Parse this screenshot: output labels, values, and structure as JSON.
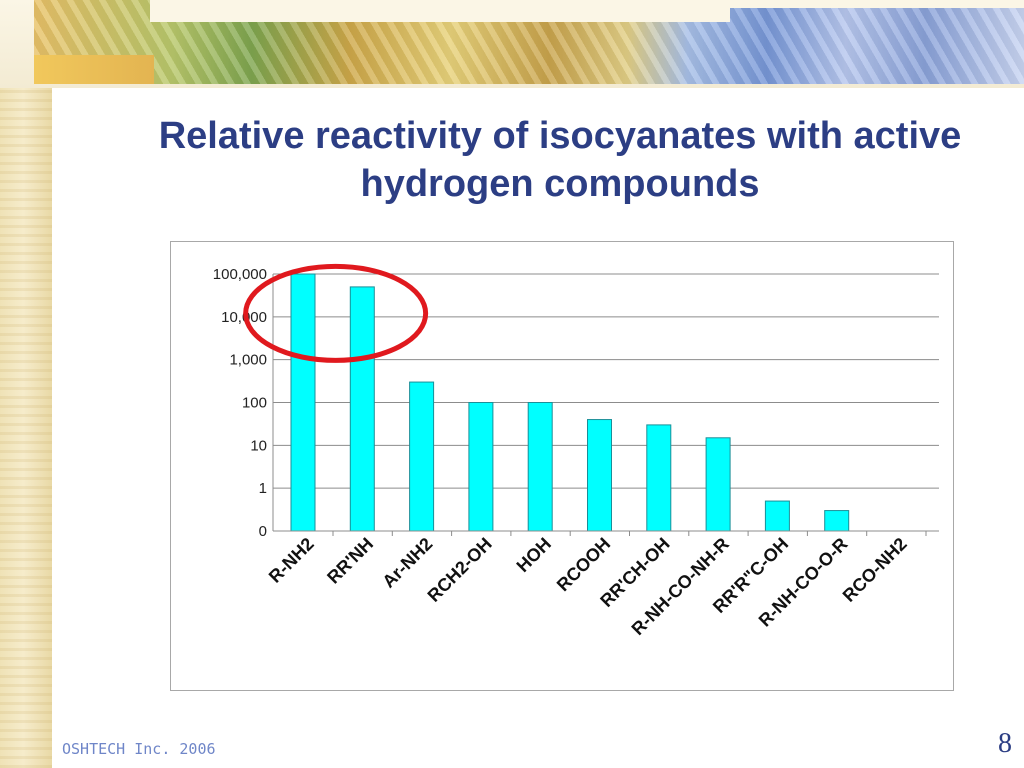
{
  "slide": {
    "title": "Relative reactivity of isocyanates with active hydrogen compounds",
    "footer": "OSHTECH Inc. 2006",
    "page_number": "8"
  },
  "colors": {
    "bar_fill": "#00ffff",
    "bar_stroke": "#1a8f98",
    "title": "#2c3e84",
    "highlight": "#e0191e"
  },
  "chart_data": {
    "type": "bar",
    "y_scale": "log",
    "y_tick_labels": [
      "0",
      "1",
      "10",
      "100",
      "1,000",
      "10,000",
      "100,000"
    ],
    "categories": [
      "R-NH2",
      "RR'NH",
      "Ar-NH2",
      "RCH2-OH",
      "HOH",
      "RCOOH",
      "RR'CH-OH",
      "R-NH-CO-NH-R",
      "RR'R\"C-OH",
      "R-NH-CO-O-R",
      "RCO-NH2"
    ],
    "values": [
      100000,
      50000,
      300,
      100,
      100,
      40,
      30,
      15,
      0.5,
      0.3,
      0
    ],
    "grid": true,
    "highlight_annotation": {
      "shape": "ellipse",
      "around_categories": [
        "R-NH2",
        "RR'NH"
      ]
    }
  }
}
